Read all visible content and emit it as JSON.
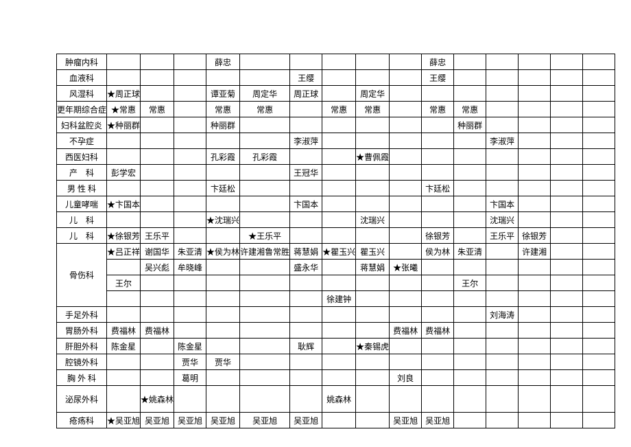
{
  "table": {
    "columns": 16,
    "dept_col_width": 70,
    "data_col_width": 46,
    "border_color": "#000000",
    "background_color": "#ffffff",
    "font_family": "SimSun",
    "font_size": 12,
    "rows": [
      {
        "dept": "肿瘤内科",
        "cells": [
          "",
          "",
          "",
          "薛忠",
          "",
          "",
          "",
          "",
          "",
          "薛忠",
          "",
          "",
          "",
          "",
          ""
        ]
      },
      {
        "dept": "血液科",
        "cells": [
          "",
          "",
          "",
          "",
          "",
          "王缨",
          "",
          "",
          "",
          "王缨",
          "",
          "",
          "",
          "",
          ""
        ]
      },
      {
        "dept": "风湿科",
        "cells": [
          "★周正球",
          "",
          "",
          "谭亚菊",
          "周定华",
          "周正球",
          "",
          "周定华",
          "",
          "",
          "",
          "",
          "",
          "",
          ""
        ]
      },
      {
        "dept": "更年期综合症",
        "cells": [
          "★常惠",
          "常惠",
          "",
          "常惠",
          "常惠",
          "",
          "常惠",
          "常惠",
          "",
          "常惠",
          "常惠",
          "",
          "",
          "",
          ""
        ]
      },
      {
        "dept": "妇科盆腔炎",
        "cells": [
          "★种丽群",
          "",
          "",
          "种丽群",
          "",
          "",
          "",
          "",
          "",
          "",
          "种丽群",
          "",
          "",
          "",
          ""
        ]
      },
      {
        "dept": "不孕症",
        "cells": [
          "",
          "",
          "",
          "",
          "",
          "李淑萍",
          "",
          "",
          "",
          "",
          "",
          "李淑萍",
          "",
          "",
          ""
        ]
      },
      {
        "dept": "西医妇科",
        "cells": [
          "",
          "",
          "",
          "孔彩霞",
          "孔彩霞",
          "",
          "",
          "★曹佩霞",
          "",
          "",
          "",
          "",
          "",
          "",
          ""
        ]
      },
      {
        "dept": "产　科",
        "cells": [
          "彭学宏",
          "",
          "",
          "",
          "",
          "王冠华",
          "",
          "",
          "",
          "",
          "",
          "",
          "",
          "",
          ""
        ]
      },
      {
        "dept": "男 性 科",
        "cells": [
          "",
          "",
          "",
          "卞廷松",
          "",
          "",
          "",
          "",
          "",
          "卞廷松",
          "",
          "",
          "",
          "",
          ""
        ]
      },
      {
        "dept": "儿童哮喘",
        "cells": [
          "★卞国本",
          "",
          "",
          "",
          "",
          "卞国本",
          "",
          "",
          "",
          "",
          "",
          "卞国本",
          "",
          "",
          ""
        ]
      },
      {
        "dept": "儿　科",
        "cells": [
          "",
          "",
          "",
          "★沈瑞兴",
          "",
          "",
          "",
          "沈瑞兴",
          "",
          "",
          "",
          "沈瑞兴",
          "",
          "",
          ""
        ]
      },
      {
        "dept": "儿　科",
        "cells": [
          "★徐银芳",
          "王乐平",
          "",
          "",
          "★王乐平",
          "",
          "",
          "",
          "",
          "徐银芳",
          "",
          "王乐平",
          "徐银芳",
          "",
          ""
        ]
      },
      {
        "dept": "骨伤科",
        "rowspan": 4,
        "cells": [
          "★吕正祥",
          "谢国华",
          "朱亚清",
          "★侯为林",
          "许建湘鲁常胜",
          "蒋慧娟",
          "★瞿玉兴",
          "瞿玉兴",
          "",
          "侯为林",
          "朱亚清",
          "",
          "许建湘",
          "",
          ""
        ]
      },
      {
        "cells": [
          "",
          "吴兴彪",
          "牟晓峰",
          "",
          "",
          "盛永华",
          "",
          "蒋慧娟",
          "★张曦",
          "",
          "",
          "",
          "",
          "",
          ""
        ]
      },
      {
        "cells": [
          "王尔",
          "",
          "",
          "",
          "",
          "",
          "",
          "",
          "",
          "",
          "王尔",
          "",
          "",
          "",
          ""
        ]
      },
      {
        "cells": [
          "",
          "",
          "",
          "",
          "",
          "",
          "徐建钟",
          "",
          "",
          "",
          "",
          "",
          "",
          "",
          ""
        ]
      },
      {
        "dept": "手足外科",
        "cells": [
          "",
          "",
          "",
          "",
          "",
          "",
          "",
          "",
          "",
          "",
          "",
          "刘海涛",
          "",
          "",
          ""
        ]
      },
      {
        "dept": "胃肠外科",
        "cells": [
          "费福林",
          "费福林",
          "",
          "",
          "",
          "",
          "",
          "",
          "费福林",
          "费福林",
          "",
          "",
          "",
          "",
          ""
        ]
      },
      {
        "dept": "肝胆外科",
        "cells": [
          "陈金星",
          "",
          "陈金星",
          "",
          "",
          "耿辉",
          "",
          "★秦锡虎",
          "",
          "",
          "",
          "",
          "",
          "",
          ""
        ]
      },
      {
        "dept": "腔镜外科",
        "cells": [
          "",
          "",
          "贾华",
          "贾华",
          "",
          "",
          "",
          "",
          "",
          "",
          "",
          "",
          "",
          "",
          ""
        ]
      },
      {
        "dept": "胸 外 科",
        "cells": [
          "",
          "",
          "葛明",
          "",
          "",
          "",
          "",
          "",
          "刘良",
          "",
          "",
          "",
          "",
          "",
          ""
        ]
      },
      {
        "dept": "泌尿外科",
        "rowclass": "tall2",
        "cells": [
          "",
          "★姚森林",
          "",
          "",
          "",
          "",
          "姚森林",
          "",
          "",
          "",
          "",
          "",
          "",
          "",
          ""
        ]
      },
      {
        "dept": "疮疡科",
        "cells": [
          "★吴亚旭",
          "吴亚旭",
          "吴亚旭",
          "吴亚旭",
          "吴亚旭",
          "吴亚旭",
          "",
          "",
          "吴亚旭",
          "吴亚旭",
          "",
          "",
          "",
          "",
          ""
        ]
      }
    ]
  }
}
